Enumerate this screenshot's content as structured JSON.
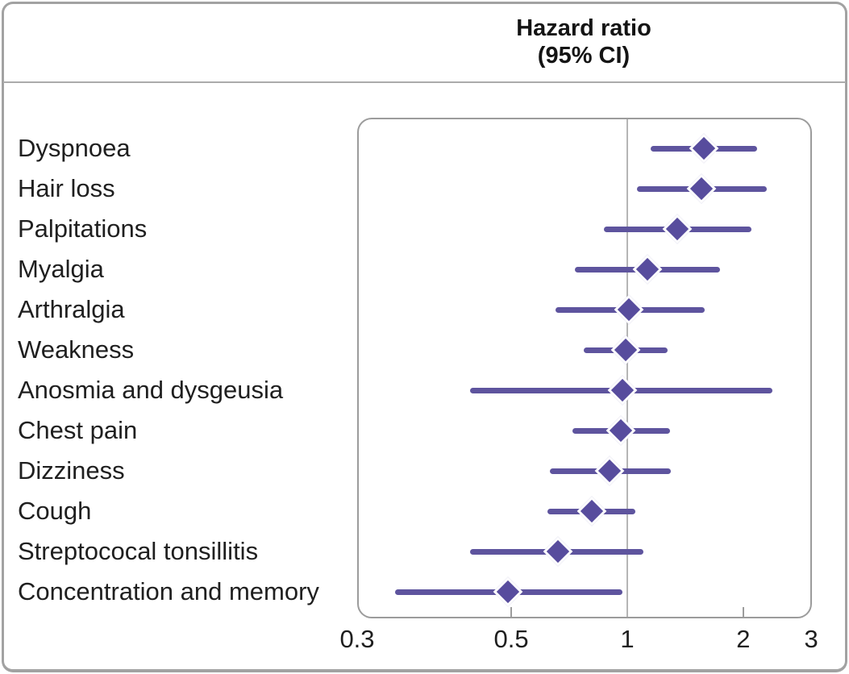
{
  "header": {
    "title_line1": "Hazard ratio",
    "title_line2": "(95% CI)"
  },
  "chart_data": {
    "type": "scatter",
    "variant": "forest-plot",
    "title": "Hazard ratio (95% CI)",
    "xlabel": "",
    "ylabel": "",
    "x_scale": "log",
    "x_range_displayed": [
      0.3,
      3
    ],
    "reference_line_x": 1,
    "grid": false,
    "legend": false,
    "x_ticks": [
      {
        "label": "0.3",
        "value": 0.3,
        "at_left_edge": true,
        "tick_mark": false
      },
      {
        "label": "0.5",
        "value": 0.5,
        "at_left_edge": false,
        "tick_mark": true
      },
      {
        "label": "1",
        "value": 1,
        "at_left_edge": false,
        "tick_mark": false
      },
      {
        "label": "2",
        "value": 2,
        "at_left_edge": false,
        "tick_mark": true
      },
      {
        "label": "3",
        "value": 3,
        "at_left_edge": false,
        "tick_mark": false
      }
    ],
    "rows": [
      {
        "label": "Dyspnoea",
        "hr": 1.58,
        "ci_low": 1.15,
        "ci_high": 2.17
      },
      {
        "label": "Hair loss",
        "hr": 1.56,
        "ci_low": 1.06,
        "ci_high": 2.3
      },
      {
        "label": "Palpitations",
        "hr": 1.35,
        "ci_low": 0.87,
        "ci_high": 2.1
      },
      {
        "label": "Myalgia",
        "hr": 1.13,
        "ci_low": 0.73,
        "ci_high": 1.74
      },
      {
        "label": "Arthralgia",
        "hr": 1.01,
        "ci_low": 0.65,
        "ci_high": 1.59
      },
      {
        "label": "Weakness",
        "hr": 0.99,
        "ci_low": 0.77,
        "ci_high": 1.27
      },
      {
        "label": "Anosmia and dysgeusia",
        "hr": 0.97,
        "ci_low": 0.39,
        "ci_high": 2.38
      },
      {
        "label": "Chest pain",
        "hr": 0.96,
        "ci_low": 0.72,
        "ci_high": 1.29
      },
      {
        "label": "Dizziness",
        "hr": 0.9,
        "ci_low": 0.63,
        "ci_high": 1.3
      },
      {
        "label": "Cough",
        "hr": 0.81,
        "ci_low": 0.62,
        "ci_high": 1.05
      },
      {
        "label": "Streptococal tonsillitis",
        "hr": 0.66,
        "ci_low": 0.39,
        "ci_high": 1.1
      },
      {
        "label": "Concentration and memory",
        "hr": 0.49,
        "ci_low": 0.25,
        "ci_high": 0.97
      }
    ],
    "colors": {
      "marker": "#574c9d",
      "ci_line": "#5e549e",
      "reference_line": "#b5b5b5",
      "panel_border": "#9c9c9c",
      "frame_border": "#a2a2a2",
      "text": "#1f1f1f"
    }
  }
}
